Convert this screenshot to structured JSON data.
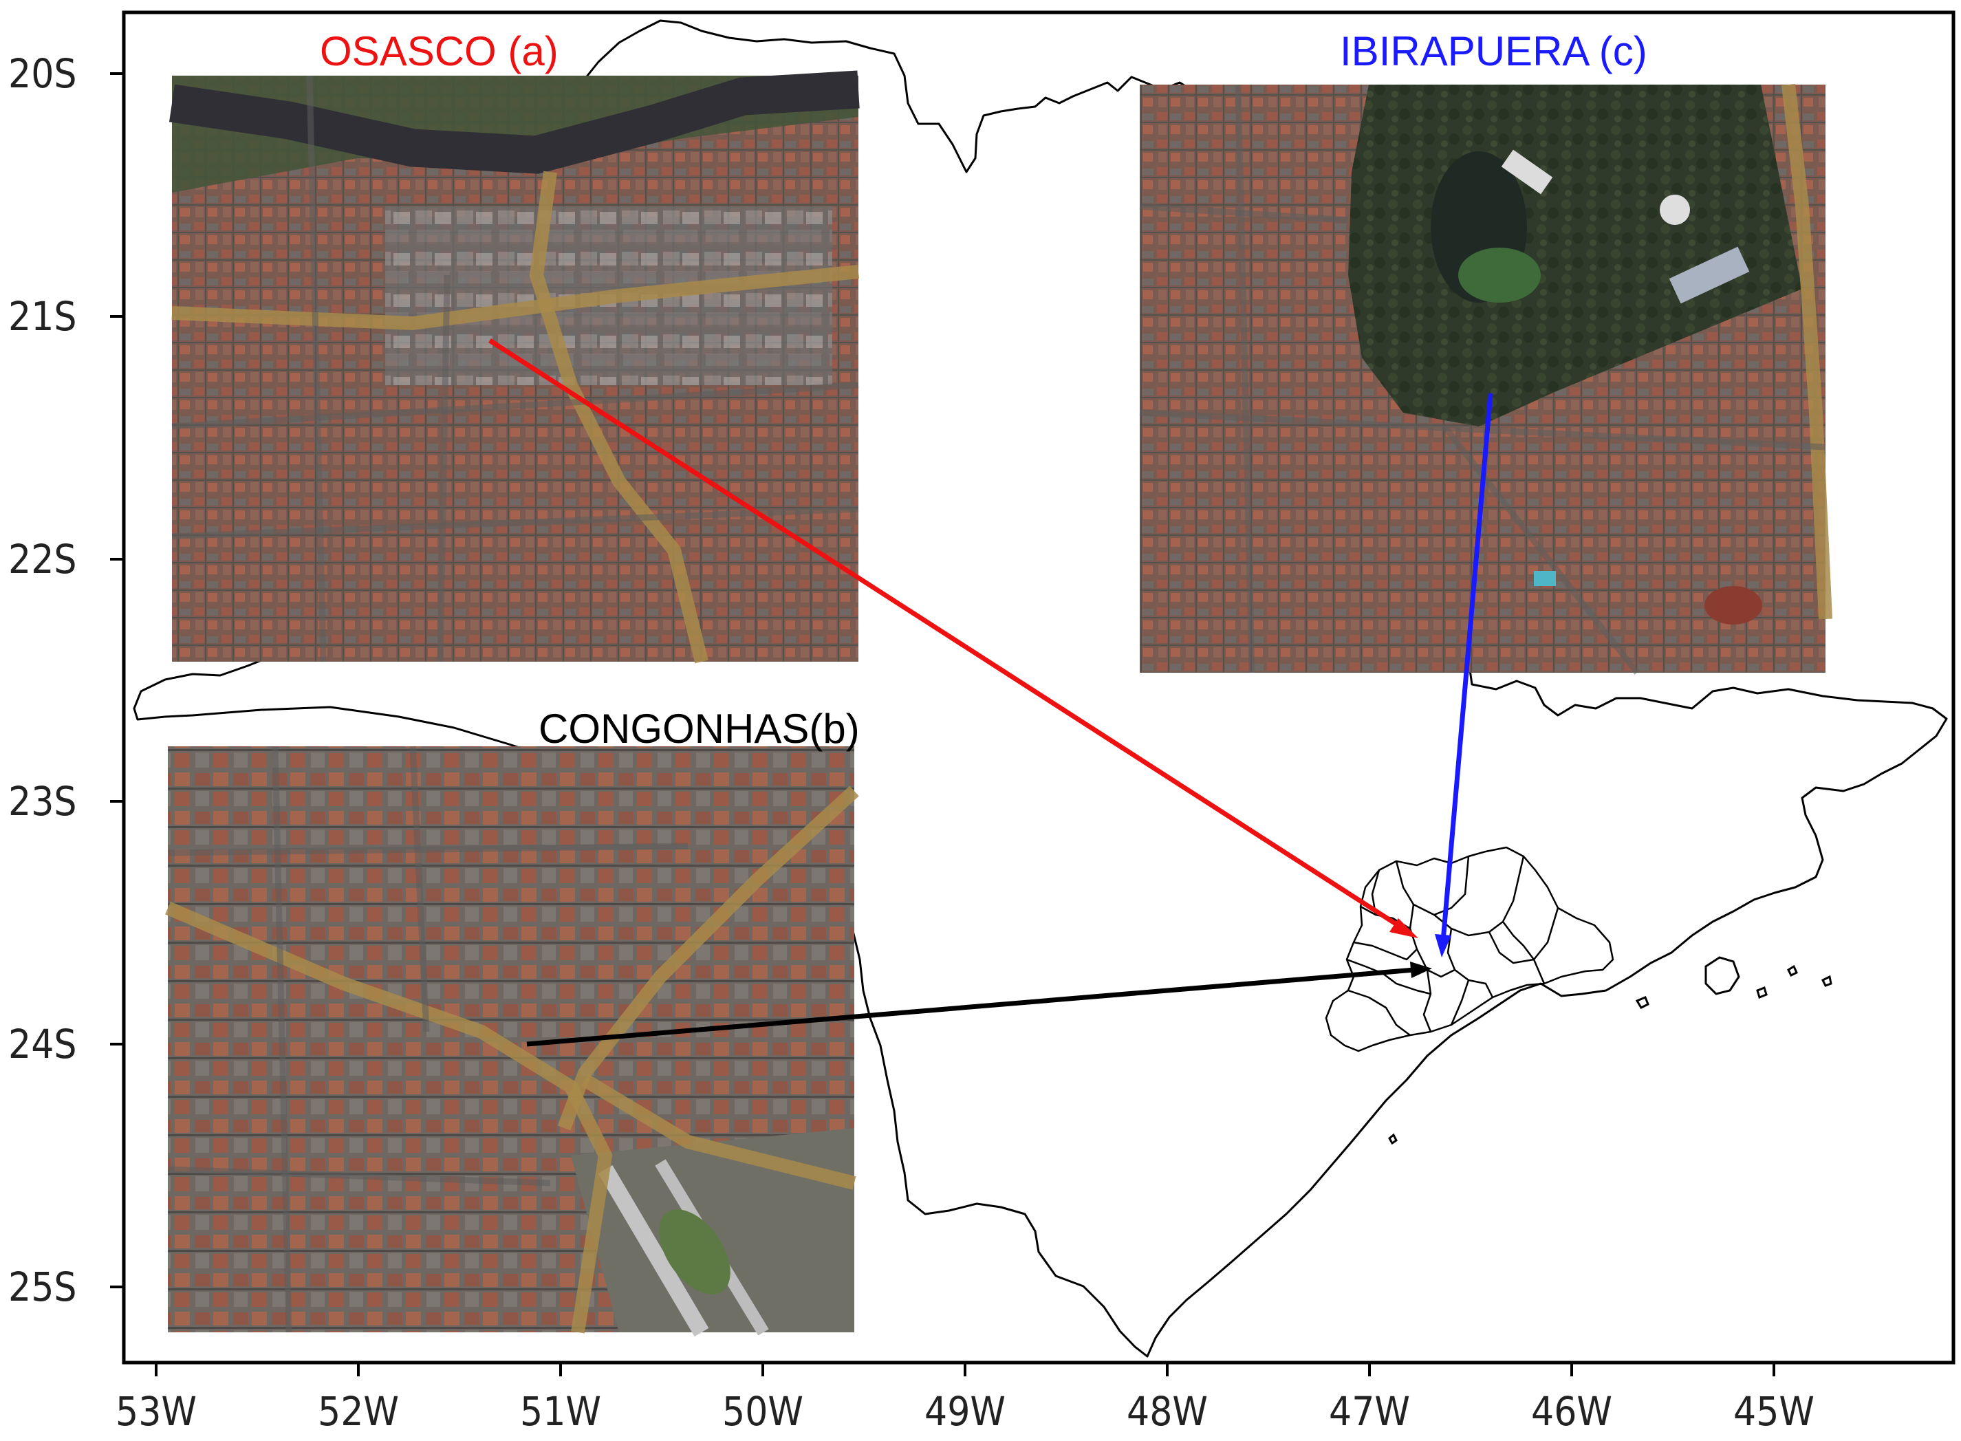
{
  "map": {
    "y_axis_labels": [
      "20S",
      "21S",
      "22S",
      "23S",
      "24S",
      "25S"
    ],
    "x_axis_labels": [
      "53W",
      "52W",
      "51W",
      "50W",
      "49W",
      "48W",
      "47W",
      "46W",
      "45W"
    ]
  },
  "insets": [
    {
      "id": "osasco",
      "title": "OSASCO (a)",
      "title_color": "#ee1111",
      "arrow_color": "#ee1111"
    },
    {
      "id": "congonhas",
      "title": "CONGONHAS(b)",
      "title_color": "#000000",
      "arrow_color": "#000000"
    },
    {
      "id": "ibirapuera",
      "title": "IBIRAPUERA (c)",
      "title_color": "#1a1aff",
      "arrow_color": "#1a1aff"
    }
  ],
  "colors": {
    "frame": "#000000",
    "state_border": "#000000",
    "urban_roof": "#8a5a48",
    "urban_gray": "#6f6f6f",
    "park_green": "#2e3a2a",
    "river": "#3a3a3a"
  }
}
